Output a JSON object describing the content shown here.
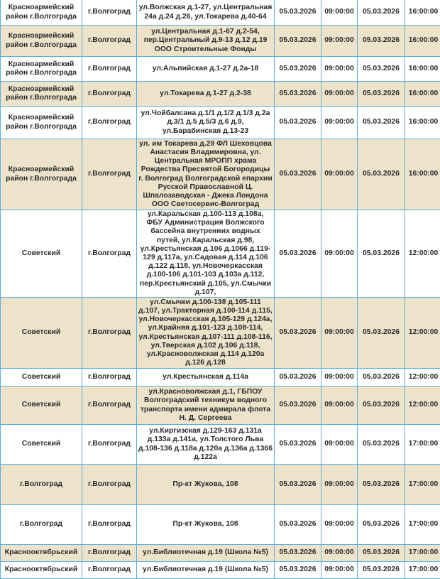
{
  "colors": {
    "row_alt": "#ede3cb",
    "row": "#ffffff",
    "border": "#5aaedc"
  },
  "rows": [
    {
      "district": "Красноармейский район г.Волгограда",
      "city": "г.Волгоград",
      "address": "ул.Волжская д.1-27, ул.Центральная 24а д.24 д.26, ул.Токарева д.40-64",
      "start_date": "05.03.2026",
      "start_time": "09:00:00",
      "end_date": "05.03.2026",
      "end_time": "16:00:00"
    },
    {
      "district": "Красноармейский район г.Волгограда",
      "city": "г.Волгоград",
      "address": "ул.Центральная д.1-67 д.2-54, пер.Центральный д.9-13 д.12 д.19 ООО Строительные Фонды",
      "start_date": "05.03.2026",
      "start_time": "09:00:00",
      "end_date": "05.03.2026",
      "end_time": "16:00:00"
    },
    {
      "district": "Красноармейский район г.Волгограда",
      "city": "г.Волгоград",
      "address": "ул.Альпийская д.1-27 д.2а-18",
      "start_date": "05.03.2026",
      "start_time": "09:00:00",
      "end_date": "05.03.2026",
      "end_time": "16:00:00"
    },
    {
      "district": "Красноармейский район г.Волгограда",
      "city": "г.Волгоград",
      "address": "ул.Токарева д.1-27 д.2-38",
      "start_date": "05.03.2026",
      "start_time": "09:00:00",
      "end_date": "05.03.2026",
      "end_time": "16:00:00"
    },
    {
      "district": "Красноармейский район г.Волгограда",
      "city": "г.Волгоград",
      "address": "ул.Чойбалсана д.1/1 д.1/2 д.1/3 д.2а д.3/1 д.5 д.5/3 д.6 д.9, ул.Барабинская д.13-23",
      "start_date": "05.03.2026",
      "start_time": "09:00:00",
      "end_date": "05.03.2026",
      "end_time": "16:00:00"
    },
    {
      "district": "Красноармейский район г.Волгограда",
      "city": "г.Волгоград",
      "address": "ул. им Токарева д.29 ФЛ Шеховцова Анастасия Владимировна, ул. Центральная МРОПП храма Рождества Пресвятой Богородицы г. Волгоград Волгоградской епархии Русской Православной Ц. Шпалозаводская - Джека Лондона ООО Светосервис-Волгоград",
      "start_date": "05.03.2026",
      "start_time": "09:00:00",
      "end_date": "05.03.2026",
      "end_time": "16:00:00"
    },
    {
      "district": "Советский",
      "city": "г.Волгоград",
      "address": "ул.Каральская д.100-113 д.108а, ФБУ Администрация Волжского бассейна внутренних водных путей, ул.Каральская д.98, ул.Крестьянская д.106 д.1066 д.119-129 д.117а, ул.Садовая д.114 д.106 д.122 д.118, ул.Новочеркасская д.100-106 д.101-103 д.103а д.112, пер.Крестьянский д.105, ул.Смычки д.107,",
      "start_date": "05.03.2026",
      "start_time": "09:00:00",
      "end_date": "05.03.2026",
      "end_time": "12:00:00"
    },
    {
      "district": "Советский",
      "city": "г.Волгоград",
      "address": "ул.Смычки д.100-138 д.105-111 д.107, ул.Тракторная д.100-114 д.115, ул.Новочеркасская д.105-129 д.124а, ул.Крайняя д.101-123 д.108-114, ул.Крестьянская д.107-111 д.108-116, ул.Тверская д.102 д.106 д.118, ул.Красноволжская д.114 д.120а д.126 д.128",
      "start_date": "05.03.2026",
      "start_time": "09:00:00",
      "end_date": "05.03.2026",
      "end_time": "12:00:00"
    },
    {
      "district": "Советский",
      "city": "г.Волгоград",
      "address": "ул.Крестьянская д.114а",
      "start_date": "05.03.2026",
      "start_time": "09:00:00",
      "end_date": "05.03.2026",
      "end_time": "12:00:00"
    },
    {
      "district": "Советский",
      "city": "г.Волгоград",
      "address": "ул.Красноволжская д.1, ГБПОУ Волгоградский техникум водного транспорта имени адмирала флота Н. Д. Сергеева",
      "start_date": "05.03.2026",
      "start_time": "09:00:00",
      "end_date": "05.03.2026",
      "end_time": "12:00:00"
    },
    {
      "district": "Советский",
      "city": "г.Волгоград",
      "address": "ул.Киргизская д.129-163 д.131а д.133а д.141а, ул.Толстого Льва д.108-136 д.118а д.120а д.136а д.1366 д.122а",
      "start_date": "05.03.2026",
      "start_time": "09:00:00",
      "end_date": "05.03.2026",
      "end_time": "17:00:00"
    },
    {
      "district": "г.Волгоград",
      "city": "г.Волгоград",
      "address": "Пр-кт Жукова, 108",
      "start_date": "05.03.2026",
      "start_time": "09:00:00",
      "end_date": "05.03.2026",
      "end_time": "17:00:00"
    },
    {
      "district": "г.Волгоград",
      "city": "г.Волгоград",
      "address": "Пр-кт Жукова, 108",
      "start_date": "05.03.2026",
      "start_time": "09:00:00",
      "end_date": "05.03.2026",
      "end_time": "17:00:00"
    },
    {
      "district": "Краснооктябрьский",
      "city": "г.Волгоград",
      "address": "ул.Библиотечная д.19 (Школа №5)",
      "start_date": "05.03.2026",
      "start_time": "09:00:00",
      "end_date": "05.03.2026",
      "end_time": "17:00:00"
    },
    {
      "district": "Краснооктябрьский",
      "city": "г.Волгоград",
      "address": "ул.Библиотечная д.19 (Школа №5)",
      "start_date": "05.03.2026",
      "start_time": "09:00:00",
      "end_date": "05.03.2026",
      "end_time": "17:00:00"
    }
  ]
}
